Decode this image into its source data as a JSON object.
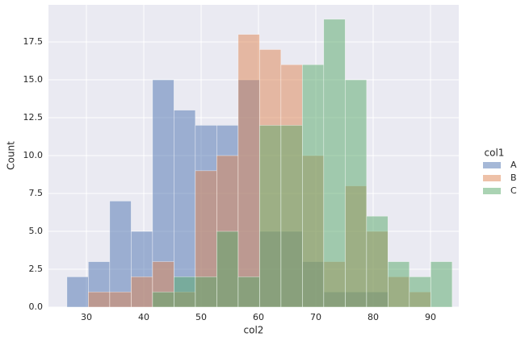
{
  "chart_data": {
    "type": "histogram",
    "x_label": "col2",
    "y_label": "Count",
    "legend_title": "col1",
    "bins": [
      26.6,
      30.33,
      34.06,
      37.8,
      41.53,
      45.26,
      48.99,
      52.72,
      56.46,
      60.19,
      63.92,
      67.65,
      71.38,
      75.12,
      78.85,
      82.58,
      86.31,
      90.04,
      93.78
    ],
    "series": [
      {
        "name": "A",
        "color": "#4c72b0",
        "values": [
          2,
          3,
          7,
          5,
          15,
          13,
          12,
          12,
          15,
          5,
          5,
          3,
          1,
          1,
          1,
          0,
          0,
          0
        ]
      },
      {
        "name": "B",
        "color": "#dd8452",
        "values": [
          0,
          1,
          1,
          2,
          3,
          1,
          9,
          10,
          18,
          17,
          16,
          10,
          3,
          8,
          5,
          2,
          1,
          0
        ]
      },
      {
        "name": "C",
        "color": "#55a868",
        "values": [
          0,
          0,
          0,
          0,
          1,
          2,
          2,
          5,
          2,
          12,
          12,
          16,
          19,
          15,
          6,
          3,
          2,
          3
        ]
      }
    ],
    "xlim": [
      23.38,
      94.93
    ],
    "xticks": [
      30,
      40,
      50,
      60,
      70,
      80,
      90
    ],
    "ylim": [
      0,
      19.95
    ],
    "yticks": [
      {
        "value": 0,
        "label": "0.0"
      },
      2.5,
      {
        "value": 5,
        "label": "5.0"
      },
      7.5,
      {
        "value": 10,
        "label": "10.0"
      },
      12.5,
      {
        "value": 15,
        "label": "15.0"
      },
      17.5
    ],
    "grid": true,
    "legend": "right"
  }
}
